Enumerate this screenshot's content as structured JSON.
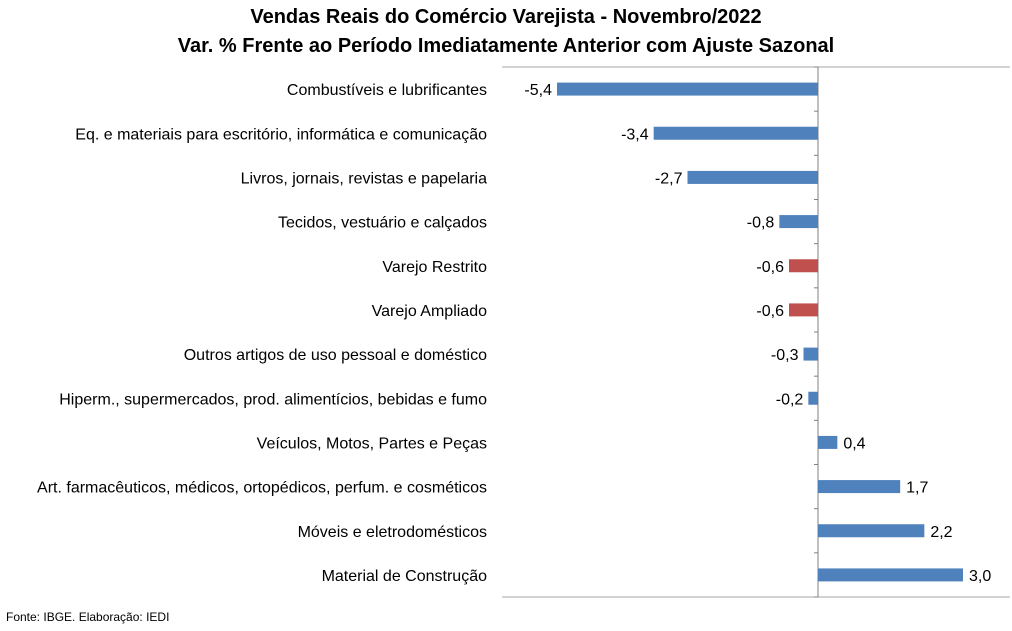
{
  "chart_data": {
    "type": "bar",
    "orientation": "horizontal",
    "title": "Vendas Reais do Comércio Varejista - Novembro/2022",
    "subtitle": "Var. % Frente ao Período Imediatamente Anterior com Ajuste Sazonal",
    "categories": [
      "Combustíveis e lubrificantes",
      "Eq. e materiais para escritório, informática e comunicação",
      "Livros, jornais, revistas e papelaria",
      "Tecidos, vestuário e calçados",
      "Varejo Restrito",
      "Varejo Ampliado",
      "Outros artigos de uso pessoal e doméstico",
      "Hiperm., supermercados, prod. alimentícios, bebidas e fumo",
      "Veículos, Motos, Partes e Peças",
      "Art. farmacêuticos, médicos, ortopédicos, perfum. e cosméticos",
      "Móveis e eletrodomésticos",
      "Material de Construção"
    ],
    "values": [
      -5.4,
      -3.4,
      -2.7,
      -0.8,
      -0.6,
      -0.6,
      -0.3,
      -0.2,
      0.4,
      1.7,
      2.2,
      3.0
    ],
    "value_labels": [
      "-5,4",
      "-3,4",
      "-2,7",
      "-0,8",
      "-0,6",
      "-0,6",
      "-0,3",
      "-0,2",
      "0,4",
      "1,7",
      "2,2",
      "3,0"
    ],
    "highlight": [
      false,
      false,
      false,
      false,
      true,
      true,
      false,
      false,
      false,
      false,
      false,
      false
    ],
    "colors": {
      "bar": "#4F81BD",
      "highlight": "#C0504D",
      "axis": "#808080",
      "grid": "#a6a6a6"
    },
    "xlim": [
      -5.4,
      4.0
    ],
    "grid": false,
    "legend": "none"
  },
  "source": "Fonte: IBGE. Elaboração: IEDI"
}
